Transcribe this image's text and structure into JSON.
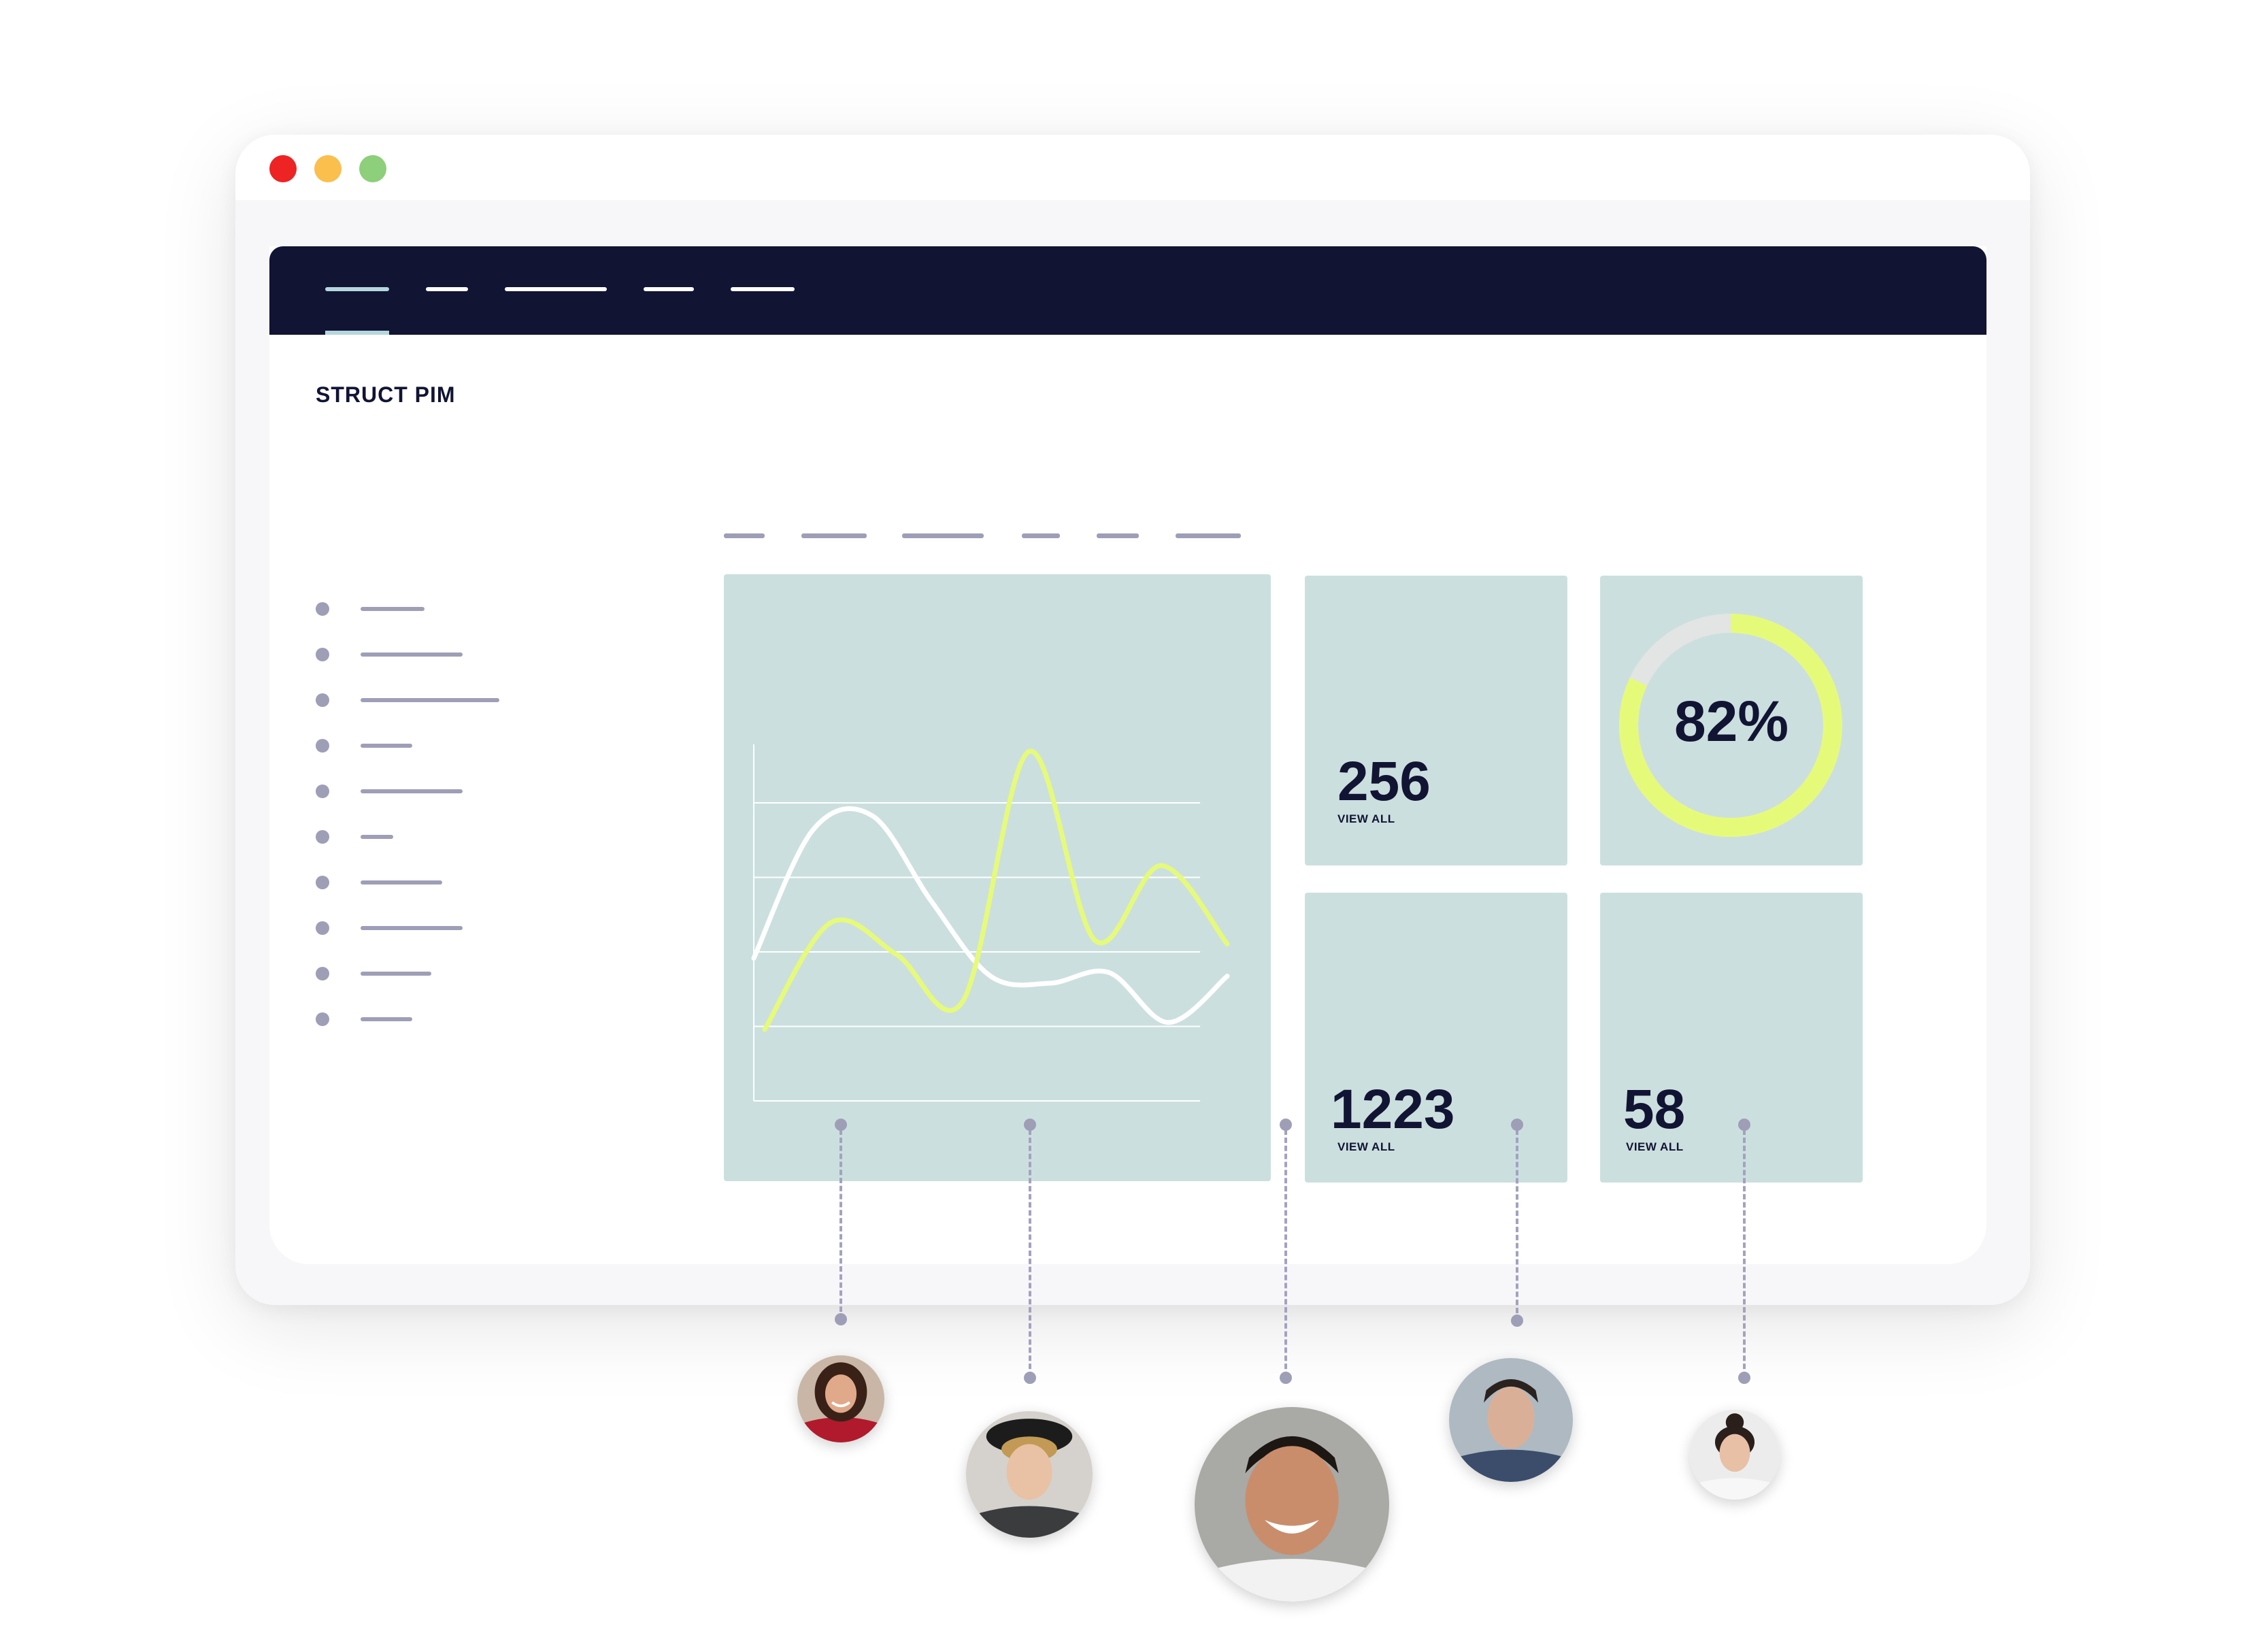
{
  "window": {
    "controls": [
      "close",
      "minimize",
      "maximize"
    ],
    "colors": {
      "close": "#ee2323",
      "minimize": "#fbbf4d",
      "maximize": "#8dcf7a"
    }
  },
  "navbar": {
    "background": "#111433",
    "placeholder_items": 5,
    "active_index": 0
  },
  "sidebar": {
    "brand": "STRUCT PIM",
    "placeholder_items": 10
  },
  "content_tabs": {
    "placeholder_items": 6
  },
  "stats": [
    {
      "value": "256",
      "link": "VIEW ALL"
    },
    {
      "value": "1223",
      "link": "VIEW ALL"
    },
    {
      "value": "58",
      "link": "VIEW ALL"
    }
  ],
  "progress": {
    "label": "82%",
    "value": 0.82,
    "color": "#e6fa7a",
    "track_color": "#e3e4e4"
  },
  "chart_data": {
    "type": "line",
    "series": [
      {
        "color": "#ffffff",
        "values": [
          0.4,
          0.76,
          0.8,
          0.56,
          0.35,
          0.33,
          0.36,
          0.22,
          0.35
        ]
      },
      {
        "color": "#e6fa7a",
        "values": [
          0.2,
          0.5,
          0.41,
          0.28,
          0.98,
          0.45,
          0.66,
          0.44
        ]
      }
    ],
    "grid": true,
    "gridlines": 4
  },
  "people": [
    {
      "icon": "avatar-woman-red-top"
    },
    {
      "icon": "avatar-man-black-hat"
    },
    {
      "icon": "avatar-man-smiling"
    },
    {
      "icon": "avatar-man-jacket"
    },
    {
      "icon": "avatar-woman-bun"
    }
  ]
}
